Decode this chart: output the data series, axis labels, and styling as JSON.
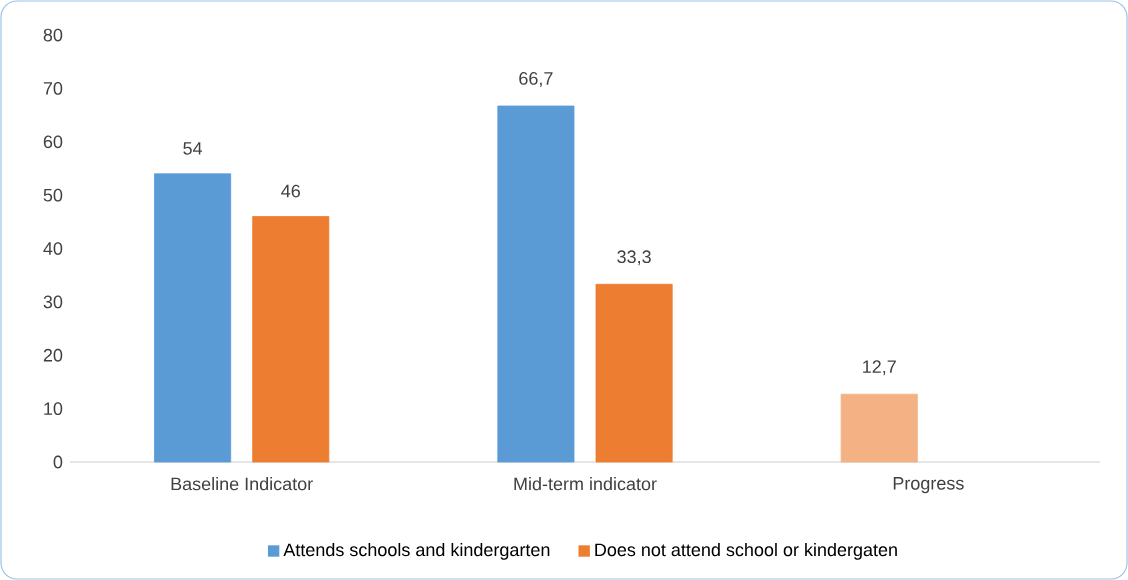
{
  "chart_data": {
    "type": "bar",
    "categories": [
      "Baseline Indicator",
      "Mid-term indicator",
      "Progress"
    ],
    "series": [
      {
        "name": "Attends schools and kindergarten",
        "color": "#5b9bd5",
        "colors": [
          "#5b9bd5",
          "#5b9bd5",
          "#f4b183"
        ],
        "values": [
          54,
          66.7,
          12.7
        ],
        "value_labels": [
          "54",
          "66,7",
          "12,7"
        ]
      },
      {
        "name": "Does not attend school or kindergaten",
        "color": "#ed7d31",
        "values": [
          46,
          33.3,
          null
        ],
        "value_labels": [
          "46",
          "33,3",
          null
        ]
      }
    ],
    "ylim": [
      0,
      80
    ],
    "yticks": [
      0,
      10,
      20,
      30,
      40,
      50,
      60,
      70,
      80
    ],
    "grid": false,
    "legend": "bottom"
  }
}
